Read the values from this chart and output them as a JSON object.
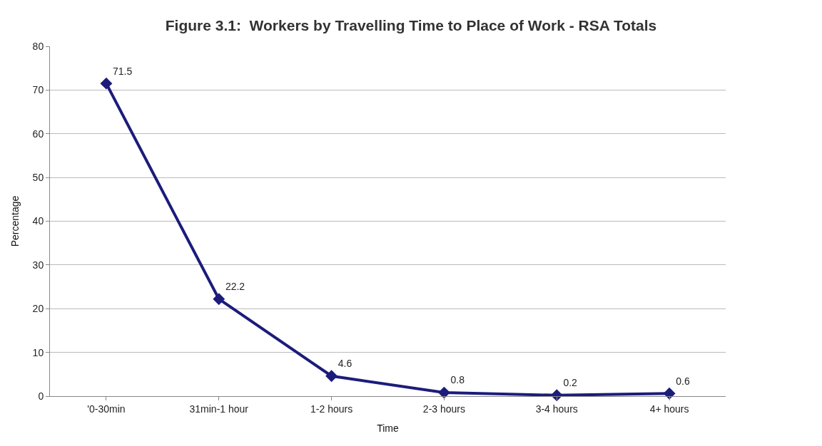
{
  "chart_data": {
    "type": "line",
    "title": "Figure 3.1:  Workers by Travelling Time to Place of Work - RSA Totals",
    "xlabel": "Time",
    "ylabel": "Percentage",
    "categories": [
      "'0-30min",
      "31min-1 hour",
      "1-2 hours",
      "2-3 hours",
      "3-4 hours",
      "4+ hours"
    ],
    "series": [
      {
        "color": "#1c1c7c",
        "values": [
          71.5,
          22.2,
          4.6,
          0.8,
          0.2,
          0.6
        ]
      }
    ],
    "ylim": [
      0,
      80
    ],
    "yticks": [
      0,
      10,
      20,
      30,
      40,
      50,
      60,
      70,
      80
    ],
    "grid": "y",
    "marker": "diamond",
    "line_style": "solid",
    "data_labels": true
  }
}
